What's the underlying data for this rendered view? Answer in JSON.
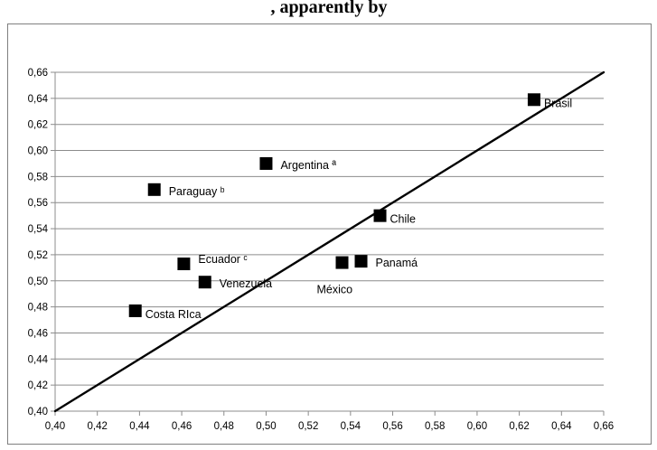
{
  "chart_data": {
    "type": "scatter",
    "title": ", apparently by",
    "xlabel": "",
    "ylabel": "",
    "xlim": [
      0.4,
      0.66
    ],
    "ylim": [
      0.4,
      0.66
    ],
    "x_ticks": [
      "0,40",
      "0,42",
      "0,44",
      "0,46",
      "0,48",
      "0,50",
      "0,52",
      "0,54",
      "0,56",
      "0,58",
      "0,60",
      "0,62",
      "0,64",
      "0,66"
    ],
    "y_ticks": [
      "0,40",
      "0,42",
      "0,44",
      "0,46",
      "0,48",
      "0,50",
      "0,52",
      "0,54",
      "0,56",
      "0,58",
      "0,60",
      "0,62",
      "0,64",
      "0,66"
    ],
    "grid": "horizontal",
    "legend": "none",
    "marker_color": "#000000",
    "reference_line": {
      "x": [
        0.4,
        0.66
      ],
      "y": [
        0.4,
        0.66
      ]
    },
    "points": [
      {
        "label": "Brasil",
        "x": 0.627,
        "y": 0.639,
        "label_pos": "right-below"
      },
      {
        "label": "Argentina ª",
        "x": 0.5,
        "y": 0.59,
        "label_pos": "right"
      },
      {
        "label": "Paraguay ᵇ",
        "x": 0.447,
        "y": 0.57,
        "label_pos": "right"
      },
      {
        "label": "Chile",
        "x": 0.554,
        "y": 0.55,
        "label_pos": "right-below"
      },
      {
        "label": "Ecuador ᶜ",
        "x": 0.461,
        "y": 0.513,
        "label_pos": "right-above"
      },
      {
        "label": "Venezuela",
        "x": 0.471,
        "y": 0.499,
        "label_pos": "right"
      },
      {
        "label": "Panamá",
        "x": 0.545,
        "y": 0.515,
        "label_pos": "right"
      },
      {
        "label": "México",
        "x": 0.536,
        "y": 0.514,
        "label_pos": "below-left"
      },
      {
        "label": "Costa RIca",
        "x": 0.438,
        "y": 0.477,
        "label_pos": "right-below"
      }
    ]
  }
}
